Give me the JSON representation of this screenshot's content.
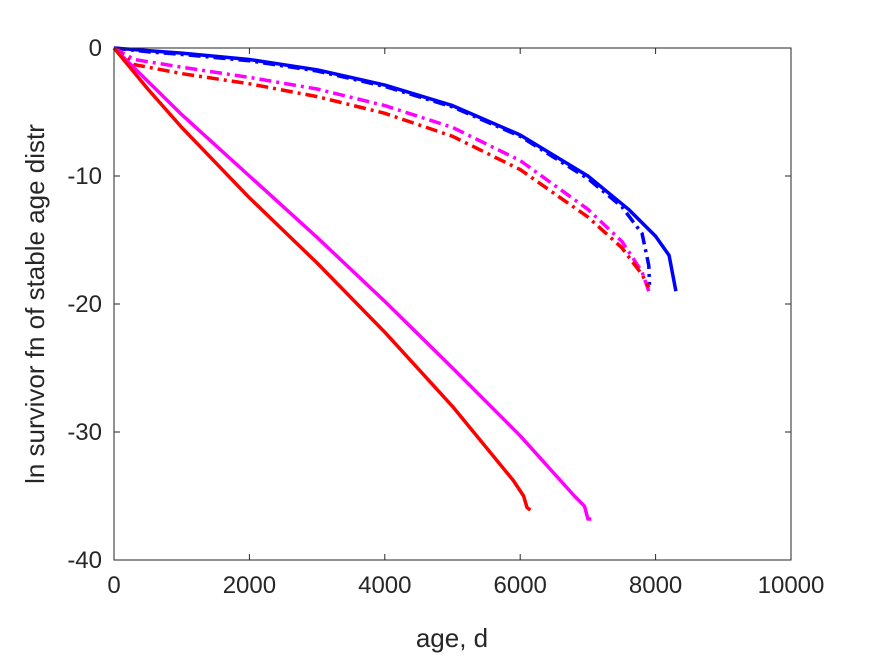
{
  "chart_data": {
    "type": "line",
    "title": "",
    "xlabel": "age, d",
    "ylabel": "ln survivor fn of stable age distr",
    "xlim": [
      0,
      10000
    ],
    "ylim": [
      -40,
      0
    ],
    "xticks": [
      0,
      2000,
      4000,
      6000,
      8000,
      10000
    ],
    "yticks": [
      0,
      -10,
      -20,
      -30,
      -40
    ],
    "xtick_labels": [
      "0",
      "2000",
      "4000",
      "6000",
      "8000",
      "10000"
    ],
    "ytick_labels": [
      "0",
      "-10",
      "-20",
      "-30",
      "-40"
    ],
    "grid": false,
    "legend": "none",
    "series": [
      {
        "color": "#0000ff",
        "style": "solid",
        "points": [
          [
            0,
            0
          ],
          [
            500,
            -0.2
          ],
          [
            1000,
            -0.4
          ],
          [
            2000,
            -0.9
          ],
          [
            3000,
            -1.7
          ],
          [
            4000,
            -2.9
          ],
          [
            5000,
            -4.5
          ],
          [
            6000,
            -6.8
          ],
          [
            7000,
            -10.0
          ],
          [
            7600,
            -12.6
          ],
          [
            8000,
            -14.7
          ],
          [
            8200,
            -16.2
          ],
          [
            8300,
            -19.0
          ]
        ]
      },
      {
        "color": "#0000ff",
        "style": "dashdot",
        "points": [
          [
            0,
            0
          ],
          [
            500,
            -0.3
          ],
          [
            1000,
            -0.5
          ],
          [
            2000,
            -1.0
          ],
          [
            3000,
            -1.8
          ],
          [
            4000,
            -3.0
          ],
          [
            5000,
            -4.6
          ],
          [
            6000,
            -6.9
          ],
          [
            7000,
            -10.2
          ],
          [
            7500,
            -12.4
          ],
          [
            7800,
            -14.5
          ],
          [
            7900,
            -17.0
          ],
          [
            7910,
            -18.5
          ]
        ]
      },
      {
        "color": "#ff00ff",
        "style": "dashdot",
        "points": [
          [
            0,
            0
          ],
          [
            300,
            -0.9
          ],
          [
            1000,
            -1.5
          ],
          [
            2000,
            -2.3
          ],
          [
            3000,
            -3.2
          ],
          [
            4000,
            -4.5
          ],
          [
            5000,
            -6.2
          ],
          [
            6000,
            -8.8
          ],
          [
            7000,
            -12.6
          ],
          [
            7500,
            -15.1
          ],
          [
            7800,
            -17.5
          ],
          [
            7900,
            -19.0
          ]
        ]
      },
      {
        "color": "#ff0000",
        "style": "dashdot",
        "points": [
          [
            0,
            0
          ],
          [
            300,
            -1.3
          ],
          [
            1000,
            -2.0
          ],
          [
            2000,
            -2.8
          ],
          [
            3000,
            -3.8
          ],
          [
            4000,
            -5.1
          ],
          [
            5000,
            -6.9
          ],
          [
            6000,
            -9.5
          ],
          [
            7000,
            -13.2
          ],
          [
            7500,
            -15.6
          ],
          [
            7800,
            -17.7
          ],
          [
            7900,
            -18.7
          ]
        ]
      },
      {
        "color": "#ff00ff",
        "style": "solid",
        "points": [
          [
            0,
            0
          ],
          [
            1000,
            -5.2
          ],
          [
            2000,
            -10.0
          ],
          [
            3000,
            -14.8
          ],
          [
            4000,
            -19.8
          ],
          [
            5000,
            -25.0
          ],
          [
            6000,
            -30.3
          ],
          [
            6800,
            -35.0
          ],
          [
            6950,
            -35.8
          ],
          [
            7000,
            -36.8
          ],
          [
            7050,
            -36.8
          ]
        ]
      },
      {
        "color": "#ff0000",
        "style": "solid",
        "points": [
          [
            0,
            0
          ],
          [
            500,
            -3.2
          ],
          [
            1000,
            -6.2
          ],
          [
            2000,
            -11.7
          ],
          [
            3000,
            -16.8
          ],
          [
            4000,
            -22.2
          ],
          [
            5000,
            -28.0
          ],
          [
            5900,
            -33.8
          ],
          [
            6050,
            -35.0
          ],
          [
            6100,
            -35.9
          ],
          [
            6150,
            -36.1
          ]
        ]
      }
    ]
  }
}
